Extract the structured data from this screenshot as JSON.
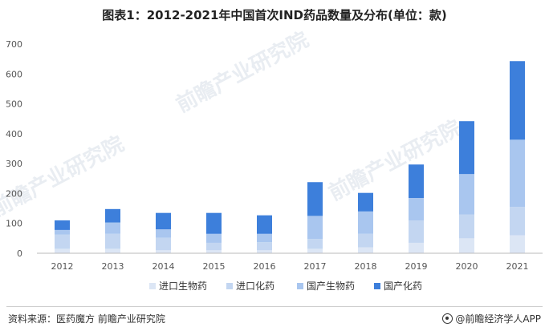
{
  "title": "图表1：2012-2021年中国首次IND药品数量及分布(单位：款)",
  "source": "资料来源：医药魔方 前瞻产业研究院",
  "brand": "@前瞻经济学人APP",
  "watermark": "前瞻产业研究院",
  "colors": {
    "series": [
      "#dce6f5",
      "#c3d6f1",
      "#a9c6ef",
      "#3d7fdb"
    ],
    "axis": "#bbbbbb",
    "grid": "#eeeeee"
  },
  "chart_data": {
    "type": "bar",
    "stacked": true,
    "categories": [
      "2012",
      "2013",
      "2014",
      "2015",
      "2016",
      "2017",
      "2018",
      "2019",
      "2020",
      "2021"
    ],
    "series": [
      {
        "name": "进口生物药",
        "values": [
          15,
          15,
          10,
          10,
          10,
          15,
          20,
          35,
          50,
          60
        ]
      },
      {
        "name": "进口化药",
        "values": [
          48,
          50,
          42,
          25,
          27,
          33,
          45,
          75,
          80,
          95
        ]
      },
      {
        "name": "国产生物药",
        "values": [
          15,
          38,
          28,
          30,
          28,
          77,
          75,
          75,
          135,
          225
        ]
      },
      {
        "name": "国产化药",
        "values": [
          32,
          45,
          55,
          70,
          62,
          113,
          62,
          112,
          177,
          263
        ]
      }
    ],
    "ylim": [
      0,
      700
    ],
    "yticks": [
      0,
      100,
      200,
      300,
      400,
      500,
      600,
      700
    ],
    "legend_position": "bottom",
    "grid": false
  }
}
